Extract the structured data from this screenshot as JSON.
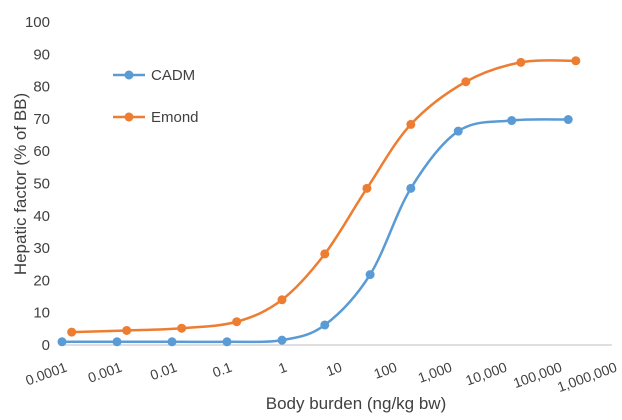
{
  "chart_data": {
    "type": "line",
    "title": "",
    "xlabel": "Body burden (ng/kg bw)",
    "ylabel": "Hepatic factor (% of BB)",
    "xscale": "log",
    "xlim": [
      0.0001,
      1000000
    ],
    "ylim": [
      0,
      100
    ],
    "x_ticks": [
      0.0001,
      0.001,
      0.01,
      0.1,
      1,
      10,
      100,
      1000,
      10000,
      100000,
      1000000
    ],
    "x_tick_labels": [
      "0.0001",
      "0.001",
      "0.01",
      "0.1",
      "1",
      "10",
      "100",
      "1,000",
      "10,000",
      "100,000",
      "1,000,000"
    ],
    "y_ticks": [
      0,
      10,
      20,
      30,
      40,
      50,
      60,
      70,
      80,
      90,
      100
    ],
    "y_tick_labels": [
      "0",
      "10",
      "20",
      "30",
      "40",
      "50",
      "60",
      "70",
      "80",
      "90",
      "100"
    ],
    "grid": false,
    "legend_position": "upper-left",
    "series": [
      {
        "name": "CADM",
        "color": "#5b9bd5",
        "x": [
          0.0001,
          0.001,
          0.01,
          0.1,
          1,
          6,
          40,
          220,
          1600,
          15000,
          160000
        ],
        "y": [
          1,
          1,
          1,
          1,
          1.5,
          6.2,
          21.8,
          48.5,
          66.2,
          69.5,
          69.8
        ]
      },
      {
        "name": "Emond",
        "color": "#ed7d31",
        "x": [
          0.00015,
          0.0015,
          0.015,
          0.15,
          1,
          6,
          35,
          220,
          2200,
          22000,
          220000
        ],
        "y": [
          4,
          4.5,
          5.2,
          7.2,
          14,
          28.2,
          48.5,
          68.3,
          81.5,
          87.5,
          88
        ]
      }
    ]
  }
}
